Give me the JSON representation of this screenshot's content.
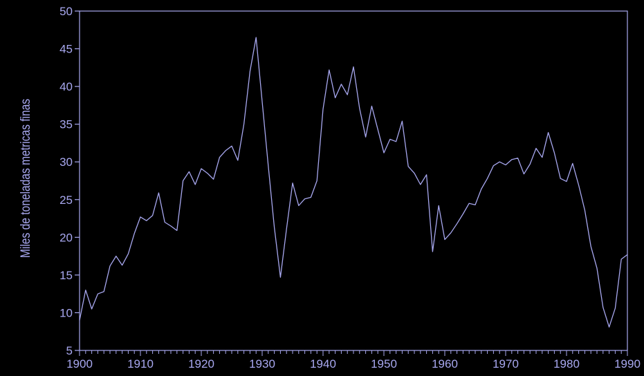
{
  "chart_data": {
    "type": "line",
    "title": "",
    "xlabel": "",
    "ylabel": "Miles de toneladas metricas finas",
    "xlim": [
      1900,
      1990
    ],
    "ylim": [
      5,
      50
    ],
    "grid": false,
    "x_ticks": [
      1900,
      1910,
      1920,
      1930,
      1940,
      1950,
      1960,
      1970,
      1980,
      1990
    ],
    "y_ticks": [
      5,
      10,
      15,
      20,
      25,
      30,
      35,
      40,
      45,
      50
    ],
    "colors": {
      "background": "#000000",
      "axis": "#a8a8f0",
      "line": "#a8a8f0",
      "text": "#a8a8f0"
    },
    "series": [
      {
        "x": [
          1900,
          1901,
          1902,
          1903,
          1904,
          1905,
          1906,
          1907,
          1908,
          1909,
          1910,
          1911,
          1912,
          1913,
          1914,
          1915,
          1916,
          1917,
          1918,
          1919,
          1920,
          1921,
          1922,
          1923,
          1924,
          1925,
          1926,
          1927,
          1928,
          1929,
          1930,
          1931,
          1932,
          1933,
          1934,
          1935,
          1936,
          1937,
          1938,
          1939,
          1940,
          1941,
          1942,
          1943,
          1944,
          1945,
          1946,
          1947,
          1948,
          1949,
          1950,
          1951,
          1952,
          1953,
          1954,
          1955,
          1956,
          1957,
          1958,
          1959,
          1960,
          1961,
          1962,
          1963,
          1964,
          1965,
          1966,
          1967,
          1968,
          1969,
          1970,
          1971,
          1972,
          1973,
          1974,
          1975,
          1976,
          1977,
          1978,
          1979,
          1980,
          1981,
          1982,
          1983,
          1984,
          1985,
          1986,
          1987,
          1988,
          1989,
          1990
        ],
        "values": [
          9.0,
          13.0,
          10.5,
          12.5,
          12.8,
          16.2,
          17.5,
          16.3,
          17.8,
          20.5,
          22.7,
          22.2,
          22.9,
          25.9,
          22.0,
          21.5,
          20.9,
          27.5,
          28.7,
          27.0,
          29.1,
          28.5,
          27.7,
          30.6,
          31.5,
          32.1,
          30.2,
          35.0,
          42.0,
          46.5,
          38.0,
          29.5,
          21.3,
          14.7,
          21.1,
          27.2,
          24.2,
          25.1,
          25.3,
          27.5,
          37.0,
          42.2,
          38.5,
          40.3,
          38.9,
          42.6,
          37.1,
          33.3,
          37.4,
          34.3,
          31.2,
          33.0,
          32.7,
          35.4,
          29.4,
          28.5,
          27.0,
          28.3,
          18.1,
          24.2,
          19.7,
          20.6,
          21.8,
          23.1,
          24.5,
          24.3,
          26.4,
          27.8,
          29.5,
          30.0,
          29.6,
          30.3,
          30.5,
          28.4,
          29.7,
          31.8,
          30.6,
          33.9,
          31.2,
          27.8,
          27.4,
          29.8,
          26.9,
          23.6,
          18.8,
          15.9,
          10.7,
          8.1,
          10.6,
          17.1,
          17.7
        ]
      }
    ]
  }
}
